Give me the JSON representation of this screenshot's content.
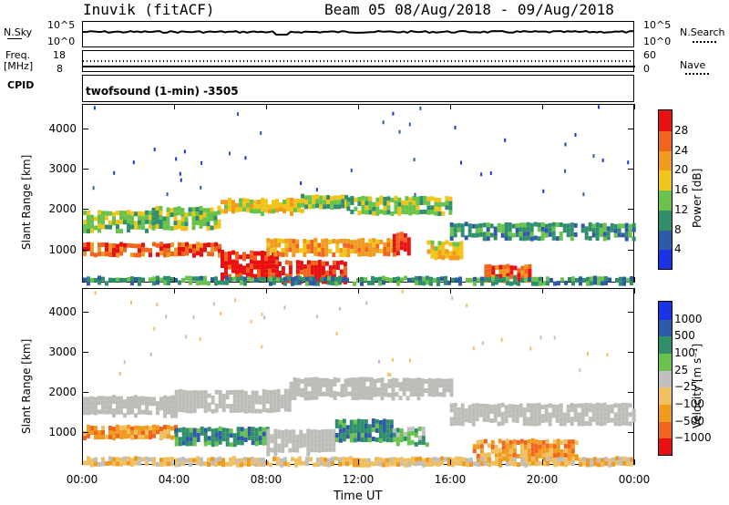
{
  "header": {
    "site": "Inuvik (fitACF)",
    "beam_range": "Beam 05 08/Aug/2018 - 09/Aug/2018"
  },
  "noise_panel": {
    "left_label": "N.Sky",
    "left_top": "10^5",
    "left_bottom": "10^0",
    "right_top": "10^5",
    "right_bottom": "10^0",
    "right_label": "N.Search"
  },
  "freq_panel": {
    "left_label_1": "Freq.",
    "left_label_2": "[MHz]",
    "left_top": "18",
    "left_bottom": "8",
    "right_top": "60",
    "right_bottom": "0",
    "right_label": "Nave"
  },
  "cpid_panel": {
    "label": "CPID",
    "program": "twofsound (1-min) -3505"
  },
  "colors": {
    "power_scale": [
      "#1a33e6",
      "#2e5aa8",
      "#2f8f6a",
      "#69c24a",
      "#f0c419",
      "#f09a1e",
      "#f0641e",
      "#e81010"
    ],
    "velocity_scale": [
      "#e81010",
      "#f0641e",
      "#f09a1e",
      "#f0c060",
      "#bfbfbf",
      "#69c24a",
      "#2f8f6a",
      "#2e5aa8",
      "#1a33e6"
    ],
    "ground_scatter": "#bdbdb8"
  },
  "chart_data": [
    {
      "type": "heatmap",
      "panel": "power",
      "ylabel": "Slant Range [km]",
      "xlabel": "",
      "ylim": [
        180,
        4600
      ],
      "yticks": [
        "1000",
        "2000",
        "3000",
        "4000"
      ],
      "xlim_hours": [
        0,
        24
      ],
      "colorbar_label": "Power [dB]",
      "colorbar_ticks": [
        "4",
        "8",
        "12",
        "16",
        "20",
        "24",
        "28"
      ],
      "bands": [
        {
          "t0": 0.0,
          "t1": 3.0,
          "r0": 1500,
          "r1": 1950,
          "level": 3
        },
        {
          "t0": 3.0,
          "t1": 6.0,
          "r0": 1550,
          "r1": 2050,
          "level": 3
        },
        {
          "t0": 6.0,
          "t1": 9.5,
          "r0": 1950,
          "r1": 2250,
          "level": 4
        },
        {
          "t0": 9.5,
          "t1": 11.5,
          "r0": 2050,
          "r1": 2350,
          "level": 3
        },
        {
          "t0": 11.5,
          "t1": 16.0,
          "r0": 1900,
          "r1": 2300,
          "level": 3
        },
        {
          "t0": 16.0,
          "t1": 24.0,
          "r0": 1300,
          "r1": 1650,
          "level": 2
        },
        {
          "t0": 0.0,
          "t1": 6.0,
          "r0": 850,
          "r1": 1150,
          "level": 6
        },
        {
          "t0": 6.0,
          "t1": 8.5,
          "r0": 300,
          "r1": 950,
          "level": 7
        },
        {
          "t0": 8.5,
          "t1": 11.5,
          "r0": 200,
          "r1": 700,
          "level": 7
        },
        {
          "t0": 8.0,
          "t1": 13.5,
          "r0": 900,
          "r1": 1250,
          "level": 5
        },
        {
          "t0": 13.5,
          "t1": 14.2,
          "r0": 900,
          "r1": 1400,
          "level": 7
        },
        {
          "t0": 15.0,
          "t1": 16.5,
          "r0": 800,
          "r1": 1200,
          "level": 4
        },
        {
          "t0": 17.5,
          "t1": 19.5,
          "r0": 250,
          "r1": 600,
          "level": 6
        },
        {
          "t0": 0.0,
          "t1": 24.0,
          "r0": 180,
          "r1": 300,
          "level": 2
        }
      ]
    },
    {
      "type": "heatmap",
      "panel": "velocity",
      "ylabel": "Slant Range [km]",
      "xlabel": "Time UT",
      "ylim": [
        180,
        4600
      ],
      "yticks": [
        "1000",
        "2000",
        "3000",
        "4000"
      ],
      "xticks": [
        "00:00",
        "04:00",
        "08:00",
        "12:00",
        "16:00",
        "20:00",
        "00:00"
      ],
      "xlim_hours": [
        0,
        24
      ],
      "colorbar_label": "Velocity [m s⁻¹]",
      "colorbar_ticks": [
        "1000",
        "500",
        "100",
        "25",
        "−25",
        "−100",
        "−500",
        "−1000"
      ],
      "bands": [
        {
          "t0": 0.0,
          "t1": 4.0,
          "r0": 1450,
          "r1": 1900,
          "level": 4
        },
        {
          "t0": 4.0,
          "t1": 9.0,
          "r0": 1550,
          "r1": 2050,
          "level": 4
        },
        {
          "t0": 9.0,
          "t1": 16.0,
          "r0": 1900,
          "r1": 2350,
          "level": 4
        },
        {
          "t0": 16.0,
          "t1": 24.0,
          "r0": 1250,
          "r1": 1700,
          "level": 4
        },
        {
          "t0": 0.0,
          "t1": 4.0,
          "r0": 850,
          "r1": 1150,
          "level": 2
        },
        {
          "t0": 4.0,
          "t1": 8.0,
          "r0": 700,
          "r1": 1100,
          "level": 6
        },
        {
          "t0": 8.0,
          "t1": 11.0,
          "r0": 500,
          "r1": 1050,
          "level": 4
        },
        {
          "t0": 11.0,
          "t1": 13.5,
          "r0": 800,
          "r1": 1300,
          "level": 6
        },
        {
          "t0": 13.5,
          "t1": 15.0,
          "r0": 700,
          "r1": 1100,
          "level": 5
        },
        {
          "t0": 17.0,
          "t1": 21.5,
          "r0": 350,
          "r1": 800,
          "level": 2
        },
        {
          "t0": 0.0,
          "t1": 24.0,
          "r0": 180,
          "r1": 350,
          "level": 3
        }
      ]
    }
  ]
}
